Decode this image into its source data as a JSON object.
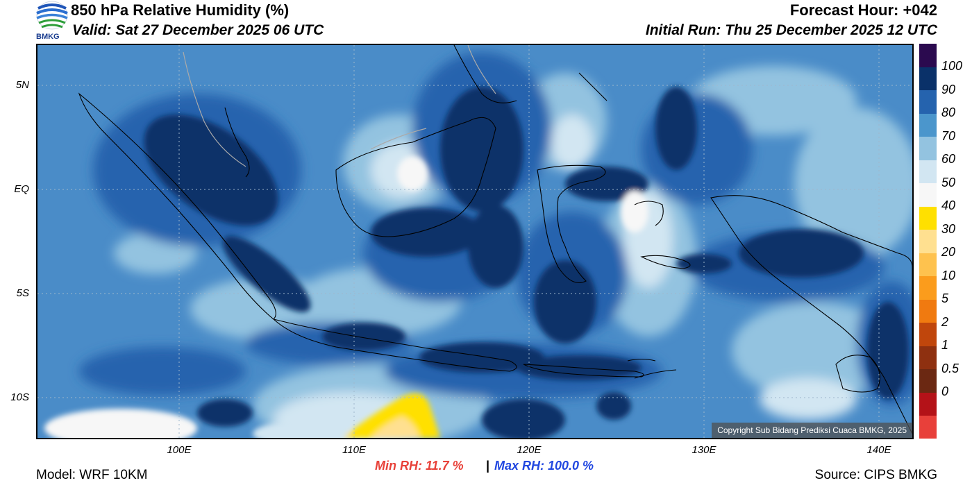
{
  "header": {
    "title": "850 hPa Relative Humidity (%)",
    "valid": "Valid: Sat 27 December 2025 06 UTC",
    "forecast_hour": "Forecast Hour: +042",
    "initial_run": "Initial Run: Thu 25 December 2025 12 UTC",
    "logo_text": "BMKG"
  },
  "map": {
    "lat_labels": [
      "5N",
      "EQ",
      "5S",
      "10S"
    ],
    "lon_labels": [
      "100E",
      "110E",
      "120E",
      "130E",
      "140E"
    ],
    "copyright": "Copyright Sub Bidang Prediksi Cuaca BMKG, 2025",
    "background_color": "#4a8cc8"
  },
  "colorbar": {
    "labels": [
      "100",
      "90",
      "80",
      "70",
      "60",
      "50",
      "40",
      "30",
      "20",
      "10",
      "5",
      "2",
      "1",
      "0.5",
      "0"
    ],
    "colors": [
      "#e8403a",
      "#b41218",
      "#6b2812",
      "#8e3010",
      "#c0460c",
      "#f07a10",
      "#fb9c1c",
      "#fec24e",
      "#ffe090",
      "#ffe000",
      "#f7f7f7",
      "#d2e6f2",
      "#93c3e0",
      "#4b96cc",
      "#2563ae",
      "#0a3169",
      "#2b0a4f"
    ]
  },
  "footer": {
    "min_rh": "Min RH:  11.7 %",
    "separator": "|",
    "max_rh": "Max RH: 100.0 %",
    "model": "Model: WRF 10KM",
    "source": "Source: CIPS BMKG"
  }
}
